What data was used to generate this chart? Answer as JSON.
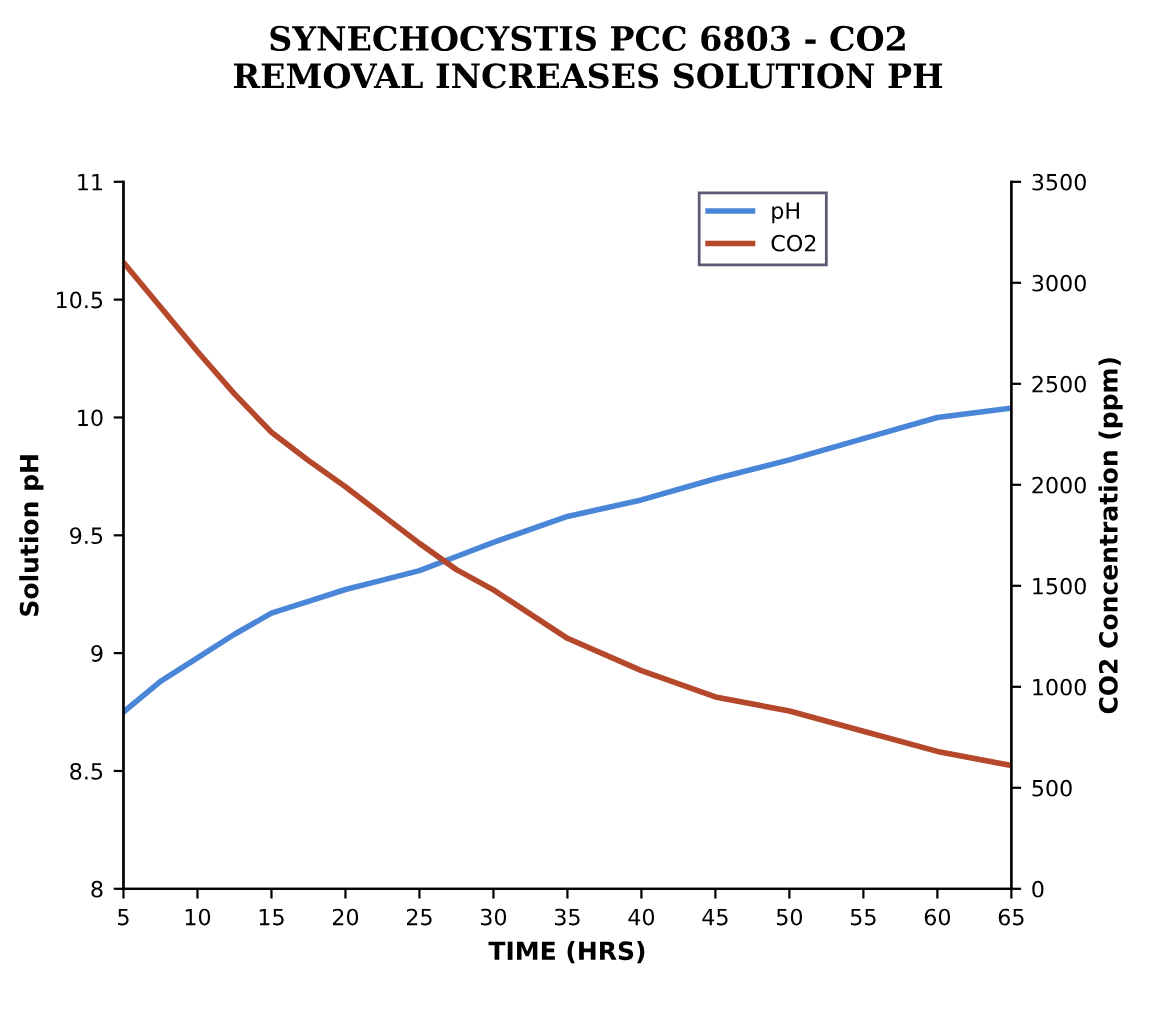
{
  "chart_data": {
    "type": "line",
    "title": "SYNECHOCYSTIS PCC 6803 - CO2\nREMOVAL INCREASES SOLUTION PH",
    "xlabel": "TIME (HRS)",
    "ylabel": "Solution pH",
    "y2label": "CO2 Concentration (ppm)",
    "xlim": [
      5,
      65
    ],
    "xticks": [
      5,
      10,
      15,
      20,
      25,
      30,
      35,
      40,
      45,
      50,
      55,
      60,
      65
    ],
    "ylim": [
      8,
      11
    ],
    "yticks": [
      8,
      8.5,
      9,
      9.5,
      10,
      10.5,
      11
    ],
    "y2lim": [
      0,
      3500
    ],
    "y2ticks": [
      0,
      500,
      1000,
      1500,
      2000,
      2500,
      3000,
      3500
    ],
    "legend": "top",
    "grid": false,
    "marker": "none",
    "line_style": "solid",
    "series": [
      {
        "name": "pH",
        "color": "#4a86d8",
        "x": [
          5,
          7.5,
          10,
          12.5,
          15,
          17.5,
          20,
          22.5,
          25,
          27.5,
          30,
          35,
          40,
          45,
          50,
          55,
          60,
          65
        ],
        "values": [
          8.75,
          8.88,
          8.98,
          9.08,
          9.17,
          9.22,
          9.27,
          9.31,
          9.35,
          9.41,
          9.47,
          9.58,
          9.65,
          9.74,
          9.82,
          9.91,
          10.0,
          10.04
        ]
      },
      {
        "name": "CO2",
        "color": "#b5472a",
        "axis": "y2",
        "x": [
          5,
          7.5,
          10,
          12.5,
          15,
          17.5,
          20,
          22.5,
          25,
          27.5,
          30,
          35,
          40,
          45,
          50,
          55,
          60,
          65
        ],
        "values": [
          3100,
          2880,
          2660,
          2450,
          2260,
          2120,
          1990,
          1850,
          1710,
          1580,
          1480,
          1240,
          1080,
          950,
          880,
          780,
          680,
          610
        ]
      }
    ]
  }
}
